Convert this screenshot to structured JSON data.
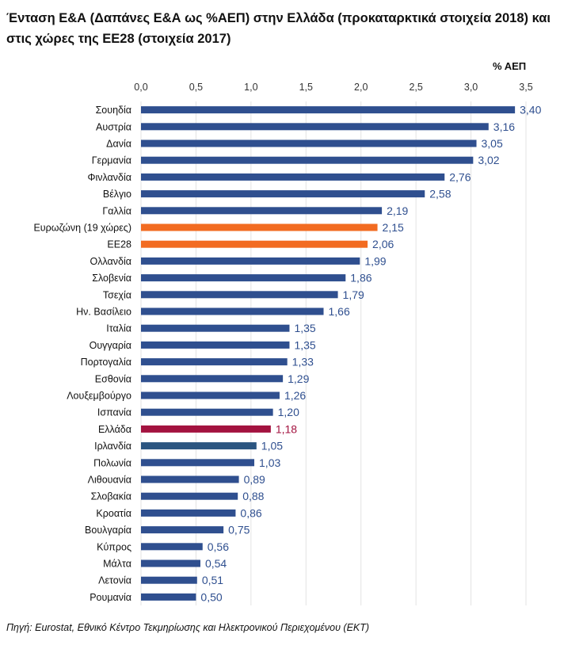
{
  "chart_data": {
    "type": "bar",
    "orientation": "horizontal",
    "title": "Ένταση Ε&Α (Δαπάνες Ε&Α ως %ΑΕΠ) στην Ελλάδα (προκαταρκτικά στοιχεία 2018) και στις χώρες της ΕΕ28 (στοιχεία 2017)",
    "unit_label": "% ΑΕΠ",
    "source": "Πηγή: Eurostat, Εθνικό Κέντρο Τεκμηρίωσης και Ηλεκτρονικού Περιεχομένου (ΕΚΤ)",
    "xlim": [
      0,
      3.5
    ],
    "ticks": [
      "0,0",
      "0,5",
      "1,0",
      "1,5",
      "2,0",
      "2,5",
      "3,0",
      "3,5"
    ],
    "grid": true,
    "categories": [
      "Σουηδία",
      "Αυστρία",
      "Δανία",
      "Γερμανία",
      "Φινλανδία",
      "Βέλγιο",
      "Γαλλία",
      "Ευρωζώνη (19 χώρες)",
      "ΕΕ28",
      "Ολλανδία",
      "Σλοβενία",
      "Τσεχία",
      "Ην. Βασίλειο",
      "Ιταλία",
      "Ουγγαρία",
      "Πορτογαλία",
      "Εσθονία",
      "Λουξεμβούργο",
      "Ισπανία",
      "Ελλάδα",
      "Ιρλανδία",
      "Πολωνία",
      "Λιθουανία",
      "Σλοβακία",
      "Κροατία",
      "Βουλγαρία",
      "Κύπρος",
      "Μάλτα",
      "Λετονία",
      "Ρουμανία"
    ],
    "values": [
      3.4,
      3.16,
      3.05,
      3.02,
      2.76,
      2.58,
      2.19,
      2.15,
      2.06,
      1.99,
      1.86,
      1.79,
      1.66,
      1.35,
      1.35,
      1.33,
      1.29,
      1.26,
      1.2,
      1.18,
      1.05,
      1.03,
      0.89,
      0.88,
      0.86,
      0.75,
      0.56,
      0.54,
      0.51,
      0.5
    ],
    "data_labels": [
      "3,40",
      "3,16",
      "3,05",
      "3,02",
      "2,76",
      "2,58",
      "2,19",
      "2,15",
      "2,06",
      "1,99",
      "1,86",
      "1,79",
      "1,66",
      "1,35",
      "1,35",
      "1,33",
      "1,29",
      "1,26",
      "1,20",
      "1,18",
      "1,05",
      "1,03",
      "0,89",
      "0,88",
      "0,86",
      "0,75",
      "0,56",
      "0,54",
      "0,51",
      "0,50"
    ],
    "colors": {
      "default": "#2f4f8f",
      "aggregate": "#f26b21",
      "greece": "#a3123f",
      "ireland": "#2b5580",
      "label_default": "#2f4f8f"
    },
    "bar_color_keys": [
      "default",
      "default",
      "default",
      "default",
      "default",
      "default",
      "default",
      "aggregate",
      "aggregate",
      "default",
      "default",
      "default",
      "default",
      "default",
      "default",
      "default",
      "default",
      "default",
      "default",
      "greece",
      "ireland",
      "default",
      "default",
      "default",
      "default",
      "default",
      "default",
      "default",
      "default",
      "default"
    ]
  }
}
